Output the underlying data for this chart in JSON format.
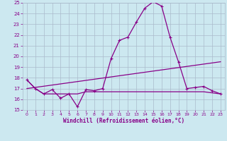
{
  "title": "",
  "xlabel": "Windchill (Refroidissement éolien,°C)",
  "ylabel": "",
  "xlim": [
    -0.5,
    23.5
  ],
  "ylim": [
    15,
    25
  ],
  "yticks": [
    15,
    16,
    17,
    18,
    19,
    20,
    21,
    22,
    23,
    24,
    25
  ],
  "xticks": [
    0,
    1,
    2,
    3,
    4,
    5,
    6,
    7,
    8,
    9,
    10,
    11,
    12,
    13,
    14,
    15,
    16,
    17,
    18,
    19,
    20,
    21,
    22,
    23
  ],
  "bg_color": "#cce8f0",
  "grid_color": "#aabbcc",
  "line_color": "#880088",
  "line1_x": [
    0,
    1,
    2,
    3,
    4,
    5,
    6,
    7,
    8,
    9,
    10,
    11,
    12,
    13,
    14,
    15,
    16,
    17,
    18,
    19,
    20,
    21,
    22,
    23
  ],
  "line1_y": [
    17.8,
    17.0,
    16.5,
    16.9,
    16.1,
    16.5,
    15.3,
    16.9,
    16.8,
    17.0,
    19.8,
    21.5,
    21.8,
    23.2,
    24.5,
    25.1,
    24.7,
    21.8,
    19.5,
    17.0,
    17.1,
    17.2,
    16.8,
    16.5
  ],
  "line2_x": [
    0,
    1,
    2,
    3,
    4,
    5,
    6,
    7,
    8,
    9,
    10,
    11,
    12,
    13,
    14,
    15,
    16,
    17,
    18,
    19,
    20,
    21,
    22,
    23
  ],
  "line2_y": [
    17.8,
    17.0,
    16.5,
    16.5,
    16.5,
    16.5,
    16.5,
    16.7,
    16.7,
    16.7,
    16.7,
    16.7,
    16.7,
    16.7,
    16.7,
    16.7,
    16.7,
    16.7,
    16.7,
    16.7,
    16.7,
    16.7,
    16.6,
    16.5
  ],
  "line3_x": [
    0,
    23
  ],
  "line3_y": [
    17.0,
    19.5
  ]
}
